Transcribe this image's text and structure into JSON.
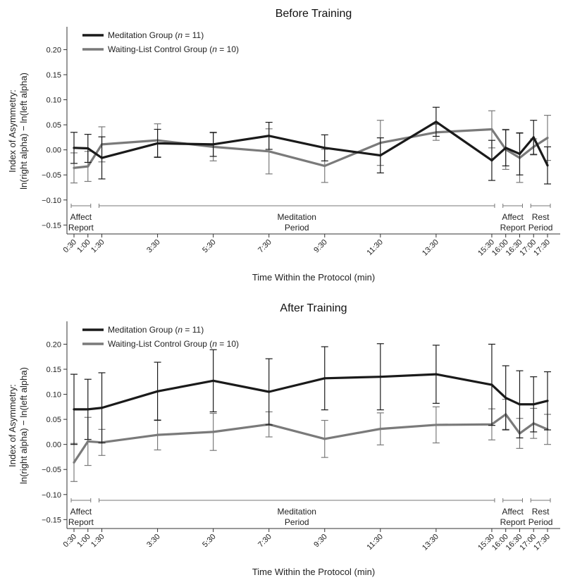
{
  "chart_data": [
    {
      "type": "line",
      "title": "Before Training",
      "ylabel_line1": "Index of Asymmetry:",
      "ylabel_line2": "ln(right alpha) − ln(left alpha)",
      "xlabel": "Time Within the Protocol (min)",
      "ylim": [
        -0.165,
        0.24
      ],
      "y_ticks": [
        "0.20",
        "0.15",
        "0.10",
        "0.05",
        "0.00",
        "−0.05",
        "−0.10",
        "−0.15"
      ],
      "x_minutes": [
        0.5,
        1.0,
        1.5,
        3.5,
        5.5,
        7.5,
        9.5,
        11.5,
        13.5,
        15.5,
        16.0,
        16.5,
        17.0,
        17.5
      ],
      "x_labels": [
        "0:30",
        "1:00",
        "1:30",
        "3:30",
        "5:30",
        "7:30",
        "9:30",
        "11:30",
        "13:30",
        "15:30",
        "16:00",
        "16:30",
        "17:00",
        "17:30"
      ],
      "phases": [
        {
          "line1": "Affect",
          "line2": "Report",
          "range": [
            0.5,
            1.0
          ]
        },
        {
          "line1": "Meditation",
          "line2": "Period",
          "range": [
            1.5,
            15.5
          ]
        },
        {
          "line1": "Affect",
          "line2": "Report",
          "range": [
            16.0,
            16.5
          ]
        },
        {
          "line1": "Rest",
          "line2": "Period",
          "range": [
            17.0,
            17.5
          ]
        }
      ],
      "legend_position": "top-left",
      "series": [
        {
          "name_prefix": "Meditation Group (",
          "name_n": "n",
          "name_suffix": " = 11)",
          "color": "#1a1a1a",
          "values": [
            0.004,
            0.003,
            -0.016,
            0.013,
            0.011,
            0.028,
            0.004,
            -0.011,
            0.056,
            -0.021,
            0.004,
            -0.008,
            0.025,
            -0.031
          ],
          "err": [
            0.031,
            0.028,
            0.042,
            0.028,
            0.024,
            0.027,
            0.026,
            0.035,
            0.029,
            0.04,
            0.036,
            0.042,
            0.034,
            0.037
          ]
        },
        {
          "name_prefix": "Waiting-List Control Group (",
          "name_n": "n",
          "name_suffix": " = 10)",
          "color": "#7a7a7a",
          "values": [
            -0.036,
            -0.033,
            0.011,
            0.019,
            0.006,
            -0.003,
            -0.032,
            0.014,
            0.035,
            0.041,
            0.001,
            -0.016,
            0.006,
            0.024
          ],
          "err": [
            0.03,
            0.03,
            0.035,
            0.033,
            0.028,
            0.045,
            0.033,
            0.045,
            0.016,
            0.037,
            0.04,
            0.049,
            0.016,
            0.045
          ]
        }
      ]
    },
    {
      "type": "line",
      "title": "After Training",
      "ylabel_line1": "Index of Asymmetry:",
      "ylabel_line2": "ln(right alpha) − ln(left alpha)",
      "xlabel": "Time Within the Protocol (min)",
      "ylim": [
        -0.165,
        0.24
      ],
      "y_ticks": [
        "0.20",
        "0.15",
        "0.10",
        "0.05",
        "0.00",
        "−0.05",
        "−0.10",
        "−0.15"
      ],
      "x_minutes": [
        0.5,
        1.0,
        1.5,
        3.5,
        5.5,
        7.5,
        9.5,
        11.5,
        13.5,
        15.5,
        16.0,
        16.5,
        17.0,
        17.5
      ],
      "x_labels": [
        "0:30",
        "1:00",
        "1:30",
        "3:30",
        "5:30",
        "7:30",
        "9:30",
        "11:30",
        "13:30",
        "15:30",
        "16:00",
        "16:30",
        "17:00",
        "17:30"
      ],
      "phases": [
        {
          "line1": "Affect",
          "line2": "Report",
          "range": [
            0.5,
            1.0
          ]
        },
        {
          "line1": "Meditation",
          "line2": "Period",
          "range": [
            1.5,
            15.5
          ]
        },
        {
          "line1": "Affect",
          "line2": "Report",
          "range": [
            16.0,
            16.5
          ]
        },
        {
          "line1": "Rest",
          "line2": "Period",
          "range": [
            17.0,
            17.5
          ]
        }
      ],
      "legend_position": "top-left",
      "series": [
        {
          "name_prefix": "Meditation Group (",
          "name_n": "n",
          "name_suffix": " = 11)",
          "color": "#1a1a1a",
          "values": [
            0.07,
            0.07,
            0.073,
            0.106,
            0.127,
            0.105,
            0.132,
            0.135,
            0.14,
            0.119,
            0.093,
            0.08,
            0.08,
            0.087
          ],
          "err": [
            0.07,
            0.06,
            0.07,
            0.058,
            0.062,
            0.066,
            0.063,
            0.066,
            0.058,
            0.081,
            0.064,
            0.067,
            0.055,
            0.058
          ]
        },
        {
          "name_prefix": "Waiting-List Control Group (",
          "name_n": "n",
          "name_suffix": " = 10)",
          "color": "#7a7a7a",
          "values": [
            -0.036,
            0.006,
            0.004,
            0.019,
            0.025,
            0.04,
            0.011,
            0.031,
            0.039,
            0.04,
            0.06,
            0.022,
            0.042,
            0.03
          ],
          "err": [
            0.038,
            0.048,
            0.026,
            0.03,
            0.037,
            0.025,
            0.037,
            0.032,
            0.036,
            0.031,
            0.03,
            0.03,
            0.03,
            0.03
          ]
        }
      ]
    }
  ]
}
